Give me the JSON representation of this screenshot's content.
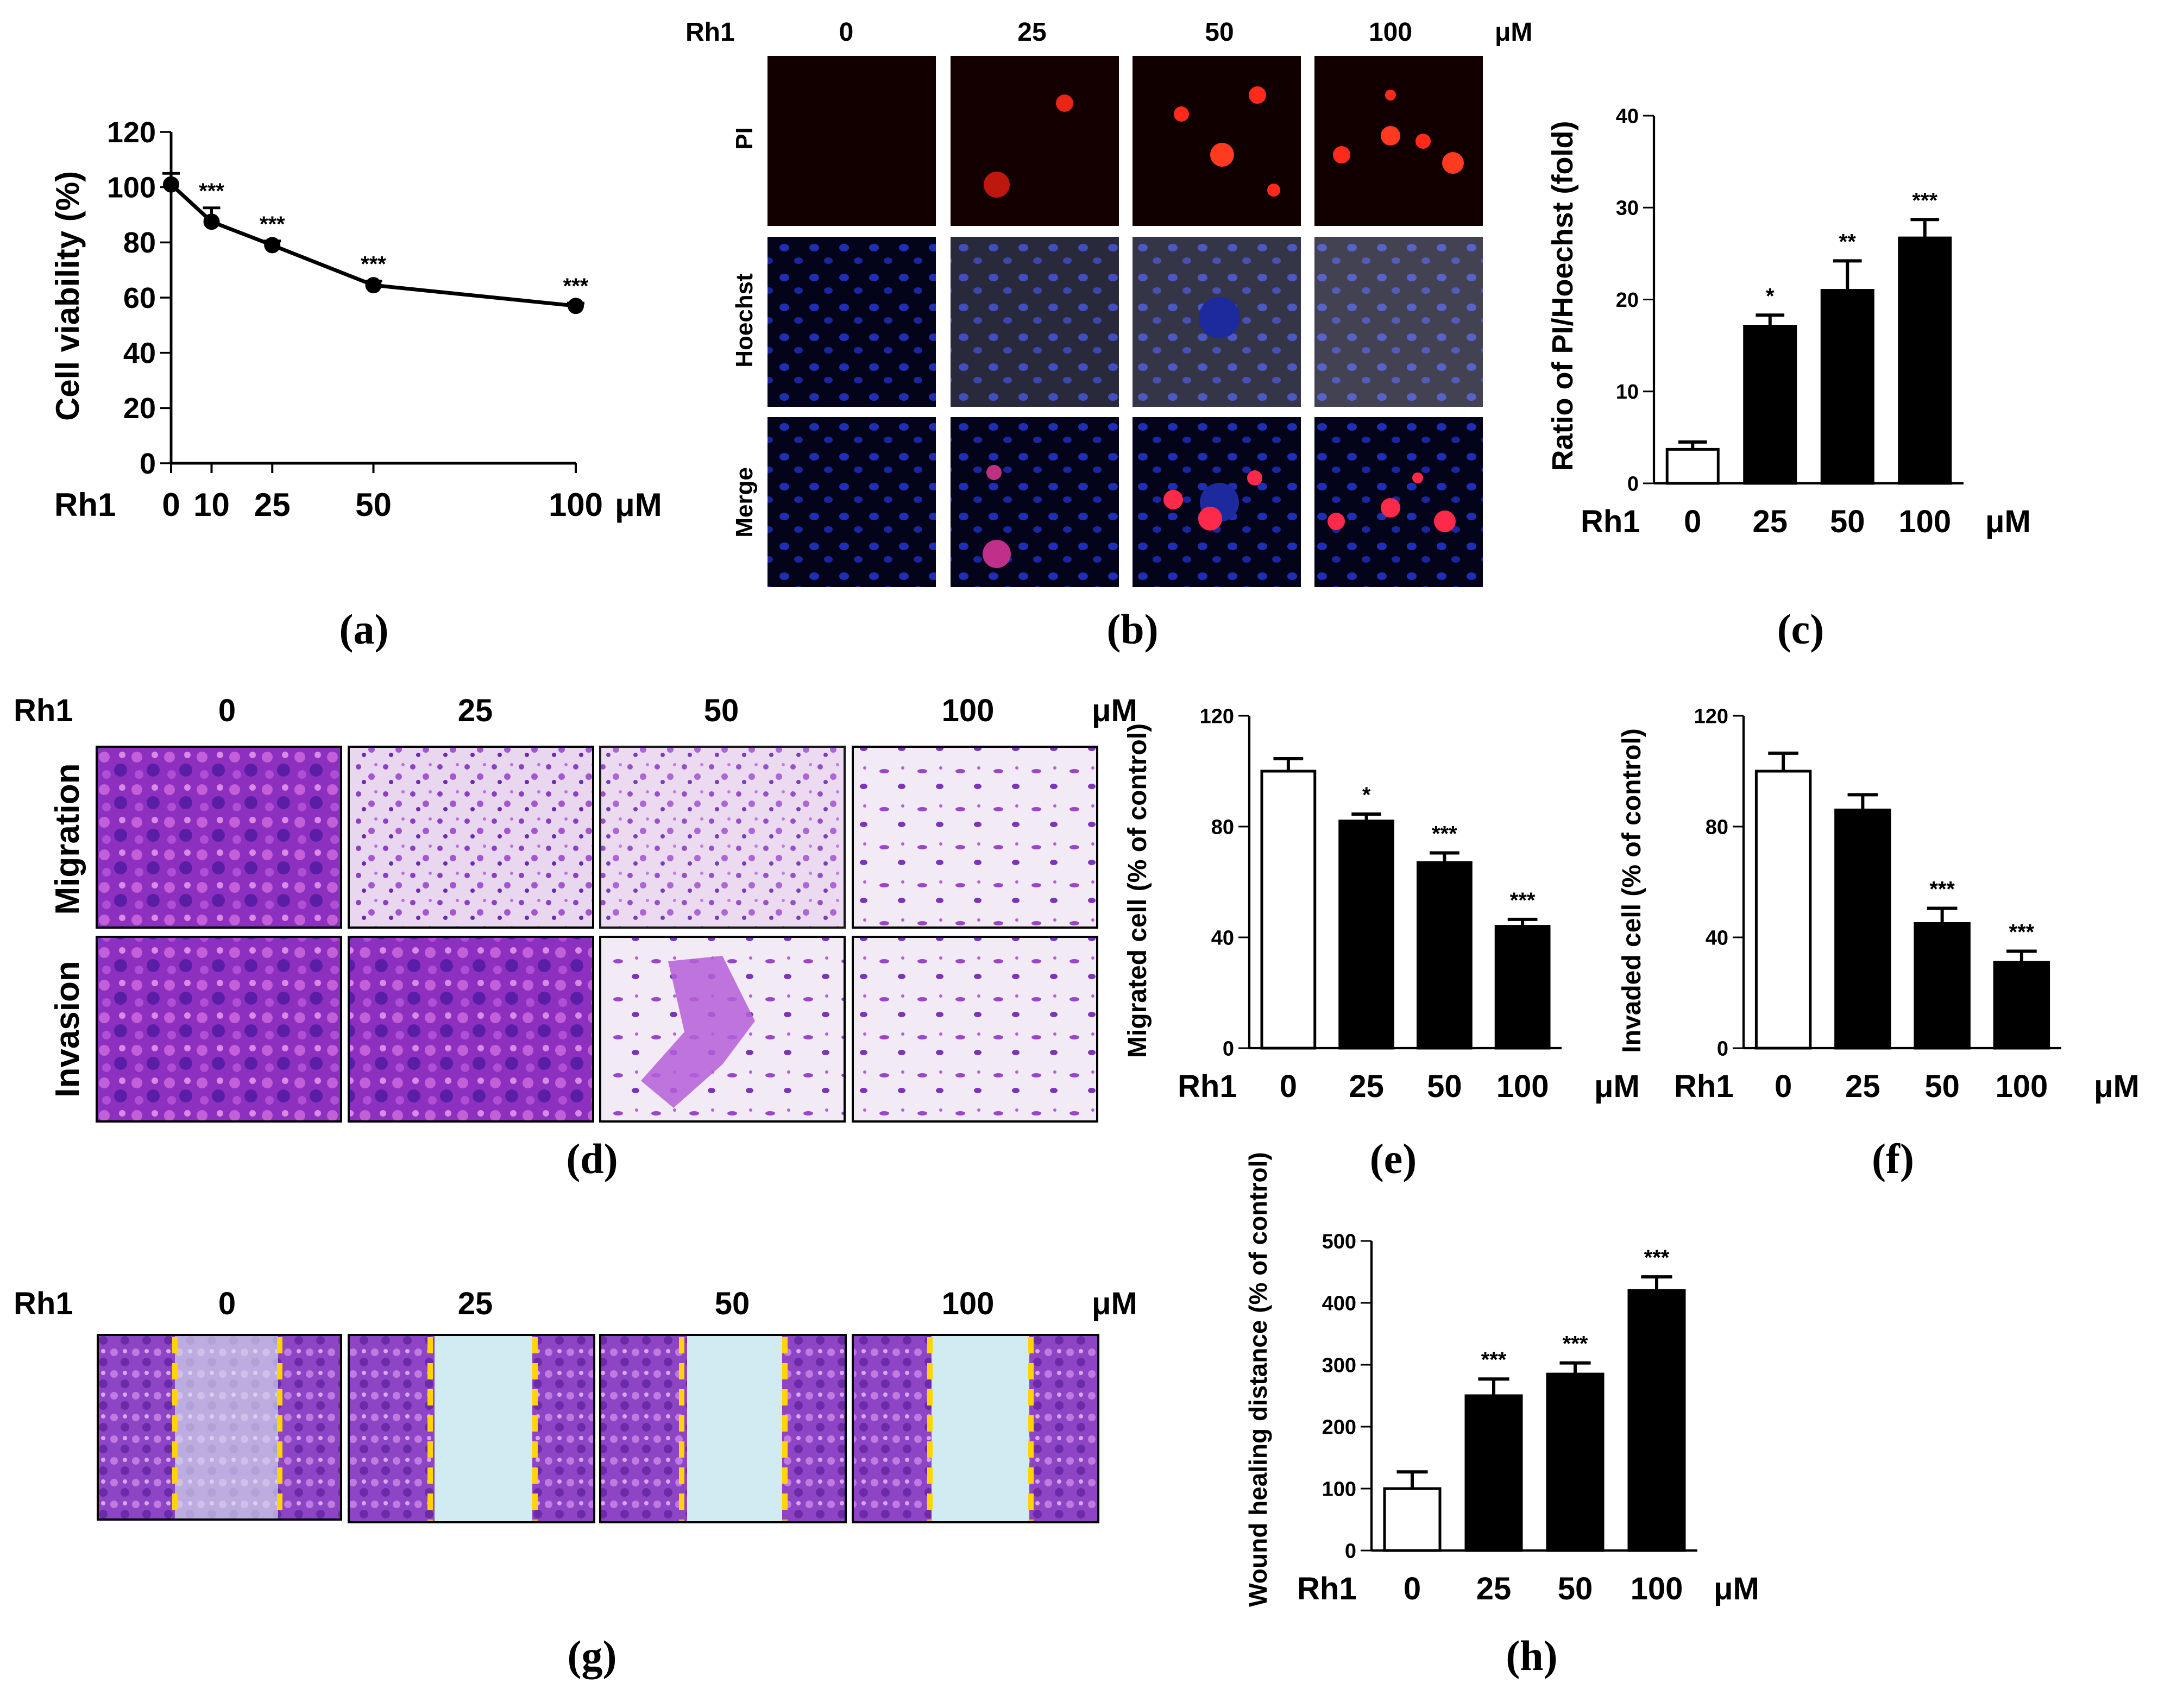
{
  "figure": {
    "panel_labels": [
      "(a)",
      "(b)",
      "(c)",
      "(d)",
      "(e)",
      "(f)",
      "(g)",
      "(h)"
    ],
    "treatment": "Rh1",
    "unit": "μM",
    "dose_headers": [
      "0",
      "25",
      "50",
      "100"
    ],
    "b_row_labels": [
      "PI",
      "Hoechst",
      "Merge"
    ],
    "d_row_labels": [
      "Migration",
      "Invasion"
    ]
  },
  "colors": {
    "bar_control": "#ffffff",
    "bar_treated": "#000000",
    "line": "#000000",
    "wound_line": "#ffd400",
    "stain_purple": "#8a3fc4",
    "fluor_red": "#ff2a1a",
    "fluor_blue": "#1f2fb5"
  },
  "chart_data": [
    {
      "id": "a",
      "type": "line",
      "x": [
        0,
        10,
        25,
        50,
        100
      ],
      "x_tick_labels": [
        "0",
        "10",
        "25",
        "50",
        "100"
      ],
      "values": [
        101,
        87.5,
        79,
        64.5,
        57
      ],
      "errors": [
        4,
        5,
        1.5,
        1.5,
        1
      ],
      "significance": [
        "",
        "***",
        "***",
        "***",
        "***"
      ],
      "ylabel": "Cell viability (%)",
      "xlabel": "Rh1",
      "unit": "μM",
      "ylim": [
        0,
        120
      ],
      "yticks": [
        "0",
        "20",
        "40",
        "60",
        "80",
        "100",
        "120"
      ]
    },
    {
      "id": "c",
      "type": "bar",
      "categories": [
        "0",
        "25",
        "50",
        "100"
      ],
      "values": [
        3.7,
        17.1,
        21,
        26.7
      ],
      "errors": [
        0.8,
        1.2,
        3.2,
        2
      ],
      "significance": [
        "",
        "*",
        "**",
        "***"
      ],
      "ylabel": "Ratio of PI/Hoechst (fold)",
      "xlabel": "Rh1",
      "unit": "μM",
      "ylim": [
        0,
        40
      ],
      "yticks": [
        "0",
        "10",
        "20",
        "30",
        "40"
      ]
    },
    {
      "id": "e",
      "type": "bar",
      "categories": [
        "0",
        "25",
        "50",
        "100"
      ],
      "values": [
        100,
        82,
        67,
        44
      ],
      "errors": [
        4.5,
        2.5,
        3.5,
        2.5
      ],
      "significance": [
        "",
        "*",
        "***",
        "***"
      ],
      "ylabel": "Migrated cell (% of control)",
      "xlabel": "Rh1",
      "unit": "μM",
      "ylim": [
        0,
        120
      ],
      "yticks": [
        "0",
        "40",
        "80",
        "120"
      ]
    },
    {
      "id": "f",
      "type": "bar",
      "categories": [
        "0",
        "25",
        "50",
        "100"
      ],
      "values": [
        100,
        86,
        45,
        31
      ],
      "errors": [
        6.5,
        5.5,
        5.5,
        4
      ],
      "significance": [
        "",
        "",
        "***",
        "***"
      ],
      "ylabel": "Invaded cell (% of control)",
      "xlabel": "Rh1",
      "unit": "μM",
      "ylim": [
        0,
        120
      ],
      "yticks": [
        "0",
        "40",
        "80",
        "120"
      ]
    },
    {
      "id": "h",
      "type": "bar",
      "categories": [
        "0",
        "25",
        "50",
        "100"
      ],
      "values": [
        100,
        250,
        285,
        420
      ],
      "errors": [
        27,
        27,
        18,
        22
      ],
      "significance": [
        "",
        "***",
        "***",
        "***"
      ],
      "ylabel": "Wound healing distance (% of control)",
      "xlabel": "Rh1",
      "unit": "μM",
      "ylim": [
        0,
        500
      ],
      "yticks": [
        "0",
        "100",
        "200",
        "300",
        "400",
        "500"
      ]
    }
  ]
}
